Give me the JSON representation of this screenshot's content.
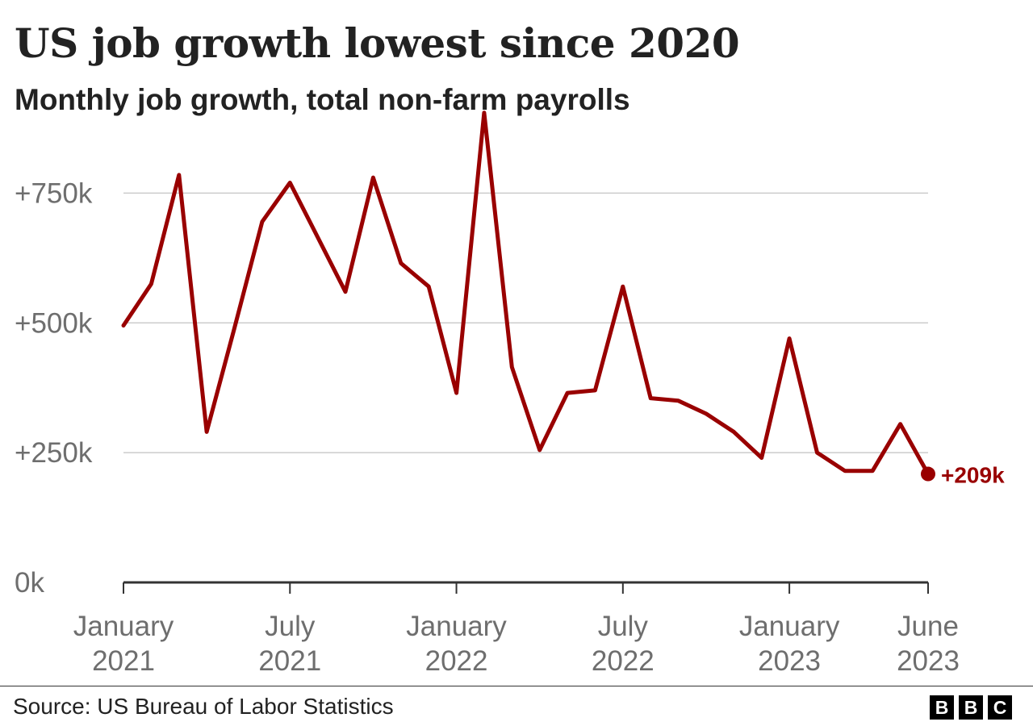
{
  "chart_data": {
    "type": "line",
    "title": "US job growth lowest since 2020",
    "subtitle": "Monthly job growth, total non-farm payrolls",
    "source": "Source: US Bureau of Labor Statistics",
    "logo": [
      "B",
      "B",
      "C"
    ],
    "colors": {
      "line": "#990000",
      "grid": "#cccccc",
      "axis": "#333333",
      "tick_text": "#6e6e6e"
    },
    "ylim": [
      0,
      920
    ],
    "y_ticks": [
      {
        "value": 750,
        "label": "+750k",
        "grid": true
      },
      {
        "value": 500,
        "label": "+500k",
        "grid": true
      },
      {
        "value": 250,
        "label": "+250k",
        "grid": true
      },
      {
        "value": 0,
        "label": "0k",
        "grid": false
      }
    ],
    "x_ticks": [
      {
        "month": "2021-01",
        "line1": "January",
        "line2": "2021"
      },
      {
        "month": "2021-07",
        "line1": "July",
        "line2": "2021"
      },
      {
        "month": "2022-01",
        "line1": "January",
        "line2": "2022"
      },
      {
        "month": "2022-07",
        "line1": "July",
        "line2": "2022"
      },
      {
        "month": "2023-01",
        "line1": "January",
        "line2": "2023"
      },
      {
        "month": "2023-06",
        "line1": "June",
        "line2": "2023"
      }
    ],
    "series": [
      {
        "x": [
          "2021-01",
          "2021-02",
          "2021-03",
          "2021-04",
          "2021-05",
          "2021-06",
          "2021-07",
          "2021-08",
          "2021-09",
          "2021-10",
          "2021-11",
          "2021-12",
          "2022-01",
          "2022-02",
          "2022-03",
          "2022-04",
          "2022-05",
          "2022-06",
          "2022-07",
          "2022-08",
          "2022-09",
          "2022-10",
          "2022-11",
          "2022-12",
          "2023-01",
          "2023-02",
          "2023-03",
          "2023-04",
          "2023-05",
          "2023-06"
        ],
        "values": [
          495,
          575,
          785,
          290,
          490,
          695,
          770,
          665,
          560,
          780,
          615,
          570,
          365,
          905,
          415,
          255,
          365,
          370,
          570,
          355,
          350,
          325,
          290,
          240,
          470,
          250,
          215,
          215,
          305,
          209
        ]
      }
    ],
    "end_label": "+209k"
  }
}
